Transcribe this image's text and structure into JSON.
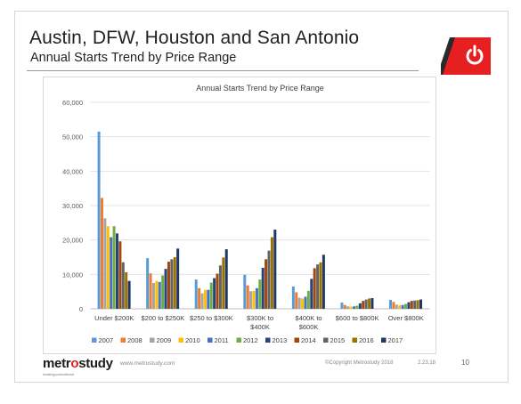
{
  "slide": {
    "title": "Austin, DFW, Houston and San Antonio",
    "subtitle": "Annual Starts Trend by Price Range",
    "page_number": "10",
    "accent_color": "#e62020"
  },
  "footer": {
    "brand_left": "metr",
    "brand_o": "o",
    "brand_right": "study",
    "tagline": "#makingyourboldmove",
    "website": "www.metrostudy.com",
    "copyright": "©Copyright Metrostudy 2018",
    "date": "2.23.18"
  },
  "chart_data": {
    "type": "bar",
    "title": "Annual Starts Trend by Price Range",
    "xlabel": "",
    "ylabel": "",
    "ylim": [
      0,
      60000
    ],
    "yticks": [
      "0",
      "10,000",
      "20,000",
      "30,000",
      "40,000",
      "50,000",
      "60,000"
    ],
    "grid": true,
    "legend_position": "bottom",
    "categories": [
      [
        "Under $200K"
      ],
      [
        "$200 to $250K"
      ],
      [
        "$250 to $300K"
      ],
      [
        "$300K to",
        "$400K"
      ],
      [
        "$400K to",
        "$600K"
      ],
      [
        "$600 to $800K"
      ],
      [
        "Over $800K"
      ]
    ],
    "series": [
      {
        "name": "2007",
        "color": "#5b9bd5",
        "values": [
          51500,
          14700,
          8500,
          9900,
          6500,
          1800,
          2600
        ]
      },
      {
        "name": "2008",
        "color": "#ed7d31",
        "values": [
          32200,
          10300,
          6000,
          6800,
          4800,
          1100,
          2000
        ]
      },
      {
        "name": "2009",
        "color": "#a5a5a5",
        "values": [
          26300,
          7500,
          4500,
          5100,
          3200,
          700,
          1200
        ]
      },
      {
        "name": "2010",
        "color": "#ffc000",
        "values": [
          24000,
          8100,
          5500,
          5200,
          3000,
          600,
          1000
        ]
      },
      {
        "name": "2011",
        "color": "#4472c4",
        "values": [
          20800,
          7800,
          5500,
          6000,
          3500,
          700,
          1100
        ]
      },
      {
        "name": "2012",
        "color": "#70ad47",
        "values": [
          24000,
          9700,
          7600,
          8500,
          5200,
          900,
          1400
        ]
      },
      {
        "name": "2013",
        "color": "#264478",
        "values": [
          21900,
          11600,
          8900,
          11900,
          8700,
          1600,
          1900
        ]
      },
      {
        "name": "2014",
        "color": "#9e480e",
        "values": [
          19600,
          13700,
          10200,
          14400,
          11800,
          2300,
          2300
        ]
      },
      {
        "name": "2015",
        "color": "#636363",
        "values": [
          13500,
          14400,
          12600,
          16900,
          12900,
          2700,
          2400
        ]
      },
      {
        "name": "2016",
        "color": "#997300",
        "values": [
          10600,
          15000,
          14900,
          20800,
          13500,
          3000,
          2500
        ]
      },
      {
        "name": "2017",
        "color": "#203864",
        "values": [
          8100,
          17500,
          17300,
          23000,
          15700,
          3100,
          2700
        ]
      }
    ]
  }
}
